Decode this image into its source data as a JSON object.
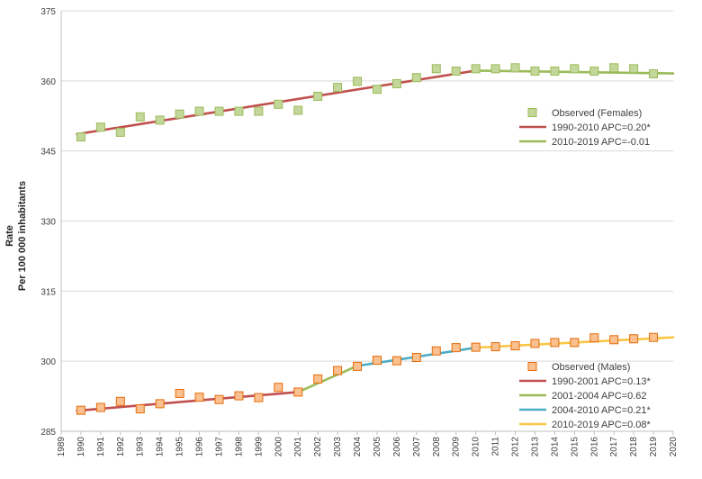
{
  "chart_data": {
    "type": "line",
    "ylabel": [
      "Rate",
      "Per 100 000 inhabitants"
    ],
    "xlim": [
      1989,
      2020
    ],
    "ylim": [
      285,
      375
    ],
    "yticks": [
      285,
      300,
      315,
      330,
      345,
      360,
      375
    ],
    "xticks": [
      1989,
      1990,
      1991,
      1992,
      1993,
      1994,
      1995,
      1996,
      1997,
      1998,
      1999,
      2000,
      2001,
      2002,
      2003,
      2004,
      2005,
      2006,
      2007,
      2008,
      2009,
      2010,
      2011,
      2012,
      2013,
      2014,
      2015,
      2016,
      2017,
      2018,
      2019,
      2020
    ],
    "grid": "horizontal",
    "legends": [
      {
        "placement": "right-middle",
        "entries": [
          {
            "label": "Observed (Females)",
            "kind": "marker",
            "color": "#9bbb59",
            "fill": "#c4d79b"
          },
          {
            "label": "1990-2010 APC=0.20*",
            "kind": "line",
            "color": "#c0504d"
          },
          {
            "label": "2010-2019 APC=-0.01",
            "kind": "line",
            "color": "#9bbb59"
          }
        ]
      },
      {
        "placement": "bottom-right",
        "entries": [
          {
            "label": "Observed  (Males)",
            "kind": "marker",
            "color": "#e46c0a",
            "fill": "#fac090"
          },
          {
            "label": "1990-2001 APC=0.13*",
            "kind": "line",
            "color": "#c0504d"
          },
          {
            "label": "2001-2004 APC=0.62",
            "kind": "line",
            "color": "#9bbb59"
          },
          {
            "label": "2004-2010 APC=0.21*",
            "kind": "line",
            "color": "#4bacc6"
          },
          {
            "label": "2010-2019 APC=0.08*",
            "kind": "line",
            "color": "#f9c745"
          }
        ]
      }
    ],
    "series": [
      {
        "kind": "markers",
        "group": "females",
        "color": "#9bbb59",
        "fill": "#c4d79b",
        "x": [
          1990,
          1991,
          1992,
          1993,
          1994,
          1995,
          1996,
          1997,
          1998,
          1999,
          2000,
          2001,
          2002,
          2003,
          2004,
          2005,
          2006,
          2007,
          2008,
          2009,
          2010,
          2011,
          2012,
          2013,
          2014,
          2015,
          2016,
          2017,
          2018,
          2019
        ],
        "values": [
          348.0,
          350.1,
          349.0,
          352.3,
          351.6,
          352.9,
          353.5,
          353.5,
          353.5,
          353.5,
          355.0,
          353.7,
          356.7,
          358.6,
          359.9,
          358.2,
          359.4,
          360.7,
          362.6,
          362.1,
          362.6,
          362.6,
          362.8,
          362.1,
          362.1,
          362.6,
          362.1,
          362.8,
          362.6,
          361.5
        ]
      },
      {
        "kind": "line",
        "group": "females",
        "color": "#c0504d",
        "x": [
          1989.8,
          2010
        ],
        "values": [
          348.6,
          362.2
        ]
      },
      {
        "kind": "line",
        "group": "females",
        "color": "#9bbb59",
        "x": [
          2010,
          2020
        ],
        "values": [
          362.2,
          361.6
        ]
      },
      {
        "kind": "markers",
        "group": "males",
        "color": "#e46c0a",
        "fill": "#fac090",
        "x": [
          1990,
          1991,
          1992,
          1993,
          1994,
          1995,
          1996,
          1997,
          1998,
          1999,
          2000,
          2001,
          2002,
          2003,
          2004,
          2005,
          2006,
          2007,
          2008,
          2009,
          2010,
          2011,
          2012,
          2013,
          2014,
          2015,
          2016,
          2017,
          2018,
          2019
        ],
        "values": [
          289.5,
          290.1,
          291.4,
          289.8,
          290.9,
          293.1,
          292.3,
          291.8,
          292.6,
          292.2,
          294.4,
          293.4,
          296.2,
          298.0,
          298.9,
          300.2,
          300.1,
          300.8,
          302.2,
          302.9,
          303.0,
          303.1,
          303.3,
          303.8,
          304.0,
          304.0,
          305.0,
          304.6,
          304.8,
          305.1
        ]
      },
      {
        "kind": "line",
        "group": "males",
        "color": "#c0504d",
        "x": [
          1989.8,
          2001
        ],
        "values": [
          289.4,
          293.4
        ]
      },
      {
        "kind": "line",
        "group": "males",
        "color": "#9bbb59",
        "x": [
          2001,
          2004
        ],
        "values": [
          293.4,
          299.0
        ]
      },
      {
        "kind": "line",
        "group": "males",
        "color": "#4bacc6",
        "x": [
          2004,
          2010
        ],
        "values": [
          299.0,
          302.9
        ]
      },
      {
        "kind": "line",
        "group": "males",
        "color": "#f9c745",
        "x": [
          2010,
          2020
        ],
        "values": [
          302.9,
          305.1
        ]
      }
    ]
  }
}
